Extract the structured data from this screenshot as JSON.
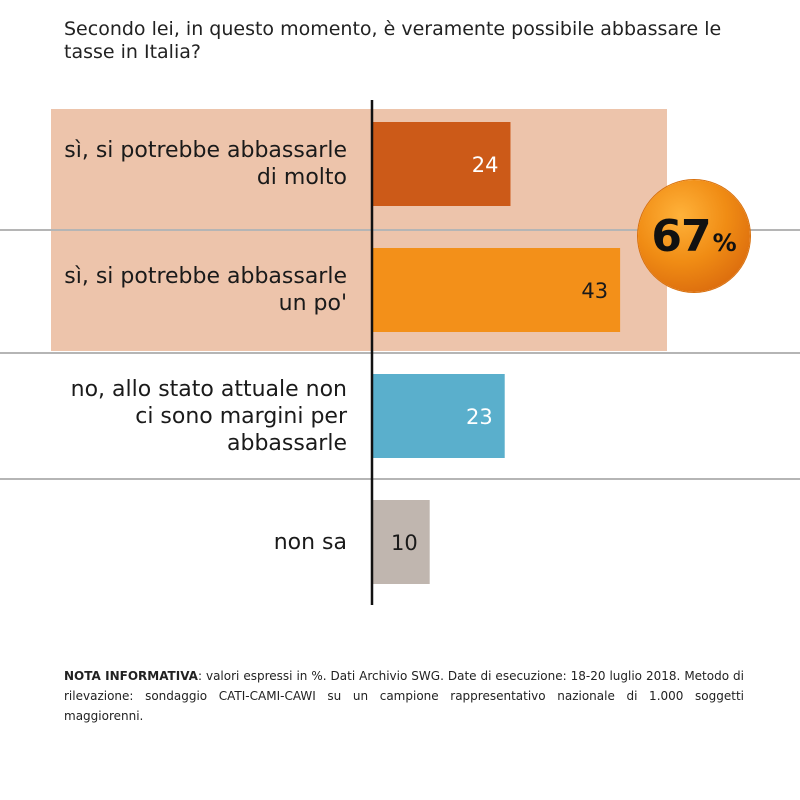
{
  "question": "Secondo lei, in questo momento, è veramente possibile abbassare le tasse in Italia?",
  "chart_data": {
    "type": "bar",
    "orientation": "horizontal",
    "categories": [
      "sì, si potrebbe abbassarle di molto",
      "sì, si potrebbe abbassarle un po'",
      "no, allo stato attuale non ci sono margini per abbassarle",
      "non sa"
    ],
    "category_lines": [
      [
        "sì, si potrebbe abbassarle",
        "di molto"
      ],
      [
        "sì, si potrebbe abbassarle",
        "un po'"
      ],
      [
        "no, allo stato attuale non",
        "ci sono margini per",
        "abbassarle"
      ],
      [
        "non sa"
      ]
    ],
    "values": [
      24,
      43,
      23,
      10
    ],
    "colors": [
      "#cc5a18",
      "#f39019",
      "#5aafcc",
      "#c0b6af"
    ],
    "label_colors": [
      "#ffffff",
      "#1a1a1a",
      "#ffffff",
      "#1a1a1a"
    ],
    "group_highlight": {
      "items": [
        0,
        1
      ],
      "color": "#edc4ab"
    },
    "total_badge": {
      "value": "67",
      "unit": "%"
    }
  },
  "note": {
    "bold": "NOTA INFORMATIVA",
    "text": ": valori espressi in %. Dati Archivio SWG. Date di esecuzione: 18-20 luglio 2018. Metodo di rilevazione: sondaggio CATI-CAMI-CAWI su un campione rappresentativo nazionale di 1.000 soggetti maggiorenni."
  }
}
